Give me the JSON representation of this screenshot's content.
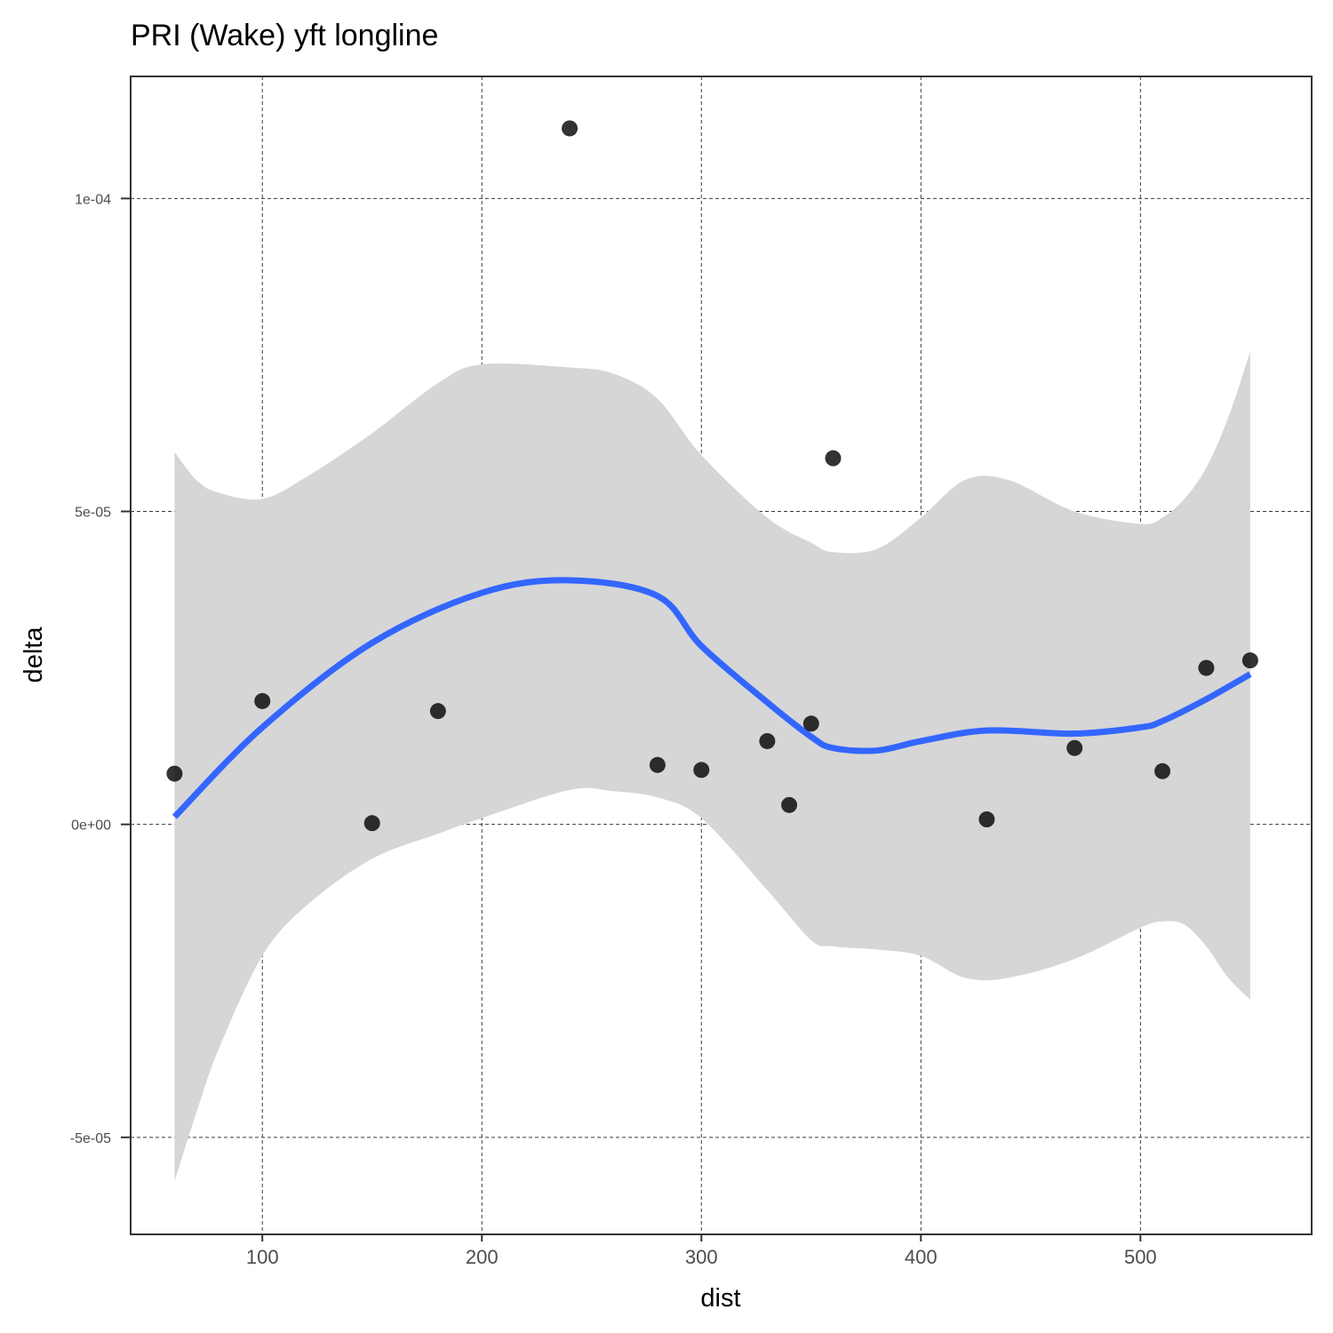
{
  "chart_data": {
    "type": "scatter",
    "title": "PRI (Wake) yft longline",
    "xlabel": "dist",
    "ylabel": "delta",
    "xlim": [
      40,
      578
    ],
    "ylim": [
      -6.55e-05,
      0.0001195
    ],
    "x_ticks": [
      100,
      200,
      300,
      400,
      500
    ],
    "x_tick_labels": [
      "100",
      "200",
      "300",
      "400",
      "500"
    ],
    "y_ticks": [
      -5e-05,
      0,
      5e-05,
      0.0001
    ],
    "y_tick_labels": [
      "-5e-05",
      "0e+00",
      "5e-05",
      "1e-04"
    ],
    "grid": true,
    "points": [
      {
        "x": 60,
        "y": 8.1e-06
      },
      {
        "x": 100,
        "y": 1.97e-05
      },
      {
        "x": 150,
        "y": 2e-07
      },
      {
        "x": 180,
        "y": 1.81e-05
      },
      {
        "x": 240,
        "y": 0.0001112
      },
      {
        "x": 280,
        "y": 9.5e-06
      },
      {
        "x": 300,
        "y": 8.7e-06
      },
      {
        "x": 330,
        "y": 1.33e-05
      },
      {
        "x": 340,
        "y": 3.1e-06
      },
      {
        "x": 350,
        "y": 1.61e-05
      },
      {
        "x": 360,
        "y": 5.85e-05
      },
      {
        "x": 430,
        "y": 8e-07
      },
      {
        "x": 470,
        "y": 1.22e-05
      },
      {
        "x": 510,
        "y": 8.5e-06
      },
      {
        "x": 530,
        "y": 2.5e-05
      },
      {
        "x": 550,
        "y": 2.62e-05
      }
    ],
    "smooth": {
      "color": "#3366FF",
      "x": [
        60,
        100,
        150,
        200,
        240,
        280,
        300,
        330,
        350,
        360,
        380,
        400,
        430,
        470,
        500,
        510,
        530,
        550
      ],
      "y": [
        1.2e-06,
        1.55e-05,
        2.9e-05,
        3.7e-05,
        3.9e-05,
        3.65e-05,
        2.85e-05,
        1.95e-05,
        1.4e-05,
        1.22e-05,
        1.18e-05,
        1.33e-05,
        1.5e-05,
        1.45e-05,
        1.55e-05,
        1.65e-05,
        2e-05,
        2.4e-05
      ]
    },
    "ribbon": {
      "color": "#d6d6d6",
      "x": [
        60,
        70,
        80,
        100,
        120,
        150,
        180,
        200,
        240,
        260,
        280,
        300,
        330,
        350,
        360,
        380,
        400,
        420,
        440,
        470,
        500,
        510,
        520,
        530,
        540,
        550
      ],
      "upper": [
        5.95e-05,
        5.5e-05,
        5.3e-05,
        5.2e-05,
        5.55e-05,
        6.25e-05,
        7.05e-05,
        7.35e-05,
        7.3e-05,
        7.2e-05,
        6.8e-05,
        5.9e-05,
        4.9e-05,
        4.5e-05,
        4.35e-05,
        4.4e-05,
        4.9e-05,
        5.5e-05,
        5.5e-05,
        5e-05,
        4.8e-05,
        4.9e-05,
        5.2e-05,
        5.7e-05,
        6.5e-05,
        7.55e-05
      ],
      "lower": [
        -5.7e-05,
        -4.6e-05,
        -3.6e-05,
        -2.1e-05,
        -1.3e-05,
        -5.5e-06,
        -1.5e-06,
        1e-06,
        5.5e-06,
        5.3e-06,
        4.3e-06,
        1e-06,
        -1.05e-05,
        -1.85e-05,
        -1.95e-05,
        -2e-05,
        -2.1e-05,
        -2.45e-05,
        -2.45e-05,
        -2.15e-05,
        -1.65e-05,
        -1.55e-05,
        -1.6e-05,
        -1.95e-05,
        -2.45e-05,
        -2.8e-05
      ]
    }
  }
}
